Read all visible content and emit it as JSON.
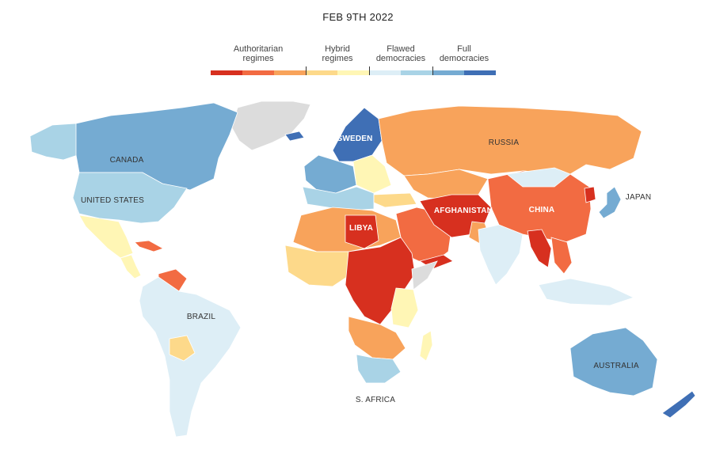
{
  "date": "FEB 9TH 2022",
  "legend": {
    "categories": [
      {
        "label_line1": "Authoritarian",
        "label_line2": "regimes"
      },
      {
        "label_line1": "Hybrid",
        "label_line2": "regimes"
      },
      {
        "label_line1": "Flawed",
        "label_line2": "democracies"
      },
      {
        "label_line1": "Full",
        "label_line2": "democracies"
      }
    ],
    "colors": [
      "#d7301f",
      "#f26b42",
      "#f8a35b",
      "#fdd98a",
      "#fff6b5",
      "#ddeef6",
      "#a9d3e6",
      "#75abd2",
      "#3f6fb5"
    ]
  },
  "labels": {
    "russia": "RUSSIA",
    "canada": "CANADA",
    "united_states": "UNITED STATES",
    "sweden": "SWEDEN",
    "china": "CHINA",
    "japan": "JAPAN",
    "afghanistan": "AFGHANISTAN",
    "libya": "LIBYA",
    "brazil": "BRAZIL",
    "australia": "AUSTRALIA",
    "s_africa": "S. AFRICA"
  },
  "colors": {
    "no_data": "#dcdcdc",
    "full": "#3f6fb5",
    "full_light": "#75abd2",
    "flawed": "#a9d3e6",
    "flawed_light": "#ddeef6",
    "hybrid_light": "#fff6b5",
    "hybrid": "#fdd98a",
    "auth_light": "#f8a35b",
    "auth_mid": "#f26b42",
    "auth_dark": "#d7301f"
  }
}
